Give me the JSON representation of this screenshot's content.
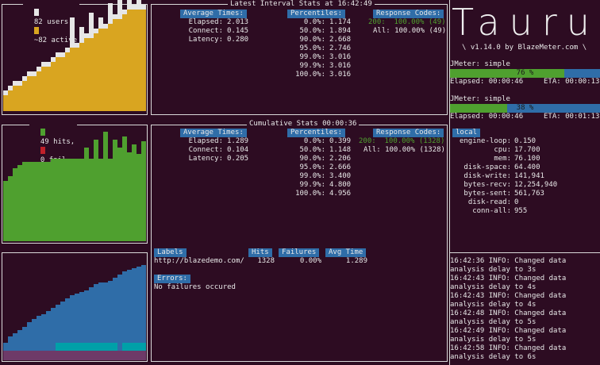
{
  "users_panel": {
    "users_label": "82 users,",
    "active_label": "~82 active",
    "colors": {
      "users": "#e6e6e6",
      "active": "#d9a520"
    }
  },
  "hits_panel": {
    "hits_label": "49 hits,",
    "fail_label": "0 fail",
    "colors": {
      "hits": "#4fa02f",
      "fail": "#c0202a"
    }
  },
  "latency_panel": {
    "colors": {
      "connect": "#6e3a68",
      "latency": "#00a0a8",
      "elapsed": "#2f6da8"
    }
  },
  "interval_stats": {
    "title": "Latest Interval Stats at 16:42:49",
    "avg_times_header": "Average Times:",
    "avg_times": [
      {
        "label": "Elapsed:",
        "value": "2.013"
      },
      {
        "label": "Connect:",
        "value": "0.145"
      },
      {
        "label": "Latency:",
        "value": "0.280"
      }
    ],
    "percentiles_header": "Percentiles:",
    "percentiles": [
      {
        "label": "0.0%:",
        "value": "1.174"
      },
      {
        "label": "50.0%:",
        "value": "1.894"
      },
      {
        "label": "90.0%:",
        "value": "2.668"
      },
      {
        "label": "95.0%:",
        "value": "2.746"
      },
      {
        "label": "99.0%:",
        "value": "3.016"
      },
      {
        "label": "99.9%:",
        "value": "3.016"
      },
      {
        "label": "100.0%:",
        "value": "3.016"
      }
    ],
    "response_codes_header": "Response Codes:",
    "response_codes": [
      {
        "text": "200:  100.00% (49)"
      },
      {
        "text": "All: 100.00% (49)"
      }
    ]
  },
  "cumulative_stats": {
    "title": "Cumulative Stats 00:00:36",
    "avg_times_header": "Average Times:",
    "avg_times": [
      {
        "label": "Elapsed:",
        "value": "1.289"
      },
      {
        "label": "Connect:",
        "value": "0.104"
      },
      {
        "label": "Latency:",
        "value": "0.205"
      }
    ],
    "percentiles_header": "Percentiles:",
    "percentiles": [
      {
        "label": "0.0%:",
        "value": "0.399"
      },
      {
        "label": "50.0%:",
        "value": "1.148"
      },
      {
        "label": "90.0%:",
        "value": "2.206"
      },
      {
        "label": "95.0%:",
        "value": "2.666"
      },
      {
        "label": "99.0%:",
        "value": "3.400"
      },
      {
        "label": "99.9%:",
        "value": "4.800"
      },
      {
        "label": "100.0%:",
        "value": "4.956"
      }
    ],
    "response_codes_header": "Response Codes:",
    "response_codes": [
      {
        "text": "200:  100.00% (1328)"
      },
      {
        "text": "All: 100.00% (1328)"
      }
    ],
    "labels_table": {
      "headers": {
        "labels": "Labels",
        "hits": "Hits",
        "failures": "Failures",
        "avg_time": "Avg Time"
      },
      "rows": [
        {
          "label": "http://blazedemo.com/",
          "hits": "1328",
          "failures": "0.00%",
          "avg_time": "1.289"
        }
      ]
    },
    "errors_header": "Errors:",
    "errors_text": "No failures occured"
  },
  "taurus": {
    "logo": "Taurus",
    "version": "\\ v1.14.0 by BlazeMeter.com \\"
  },
  "executors": [
    {
      "name": "JMeter: simple",
      "progress": 0.76,
      "progress_label": "76 %",
      "elapsed": "Elapsed: 00:00:46",
      "eta": "ETA: 00:00:13"
    },
    {
      "name": "JMeter: simple",
      "progress": 0.38,
      "progress_label": "38 %",
      "elapsed": "Elapsed: 00:00:46",
      "eta": "ETA: 00:01:13"
    }
  ],
  "local": {
    "header": "local",
    "metrics": [
      {
        "label": "engine-loop:",
        "value": "0.150"
      },
      {
        "label": "cpu:",
        "value": "17.700"
      },
      {
        "label": "mem:",
        "value": "76.100"
      },
      {
        "label": "disk-space:",
        "value": "64.400"
      },
      {
        "label": "disk-write:",
        "value": "141,941"
      },
      {
        "label": "bytes-recv:",
        "value": "12,254,940"
      },
      {
        "label": "bytes-sent:",
        "value": "561,763"
      },
      {
        "label": "disk-read:",
        "value": "0"
      },
      {
        "label": "conn-all:",
        "value": "955"
      }
    ]
  },
  "log": {
    "lines": [
      "16:42:36 INFO: Changed data",
      "analysis delay to 3s",
      "16:42:43 INFO: Changed data",
      "analysis delay to 4s",
      "16:42:43 INFO: Changed data",
      "analysis delay to 4s",
      "16:42:48 INFO: Changed data",
      "analysis delay to 5s",
      "16:42:49 INFO: Changed data",
      "analysis delay to 5s",
      "16:42:58 INFO: Changed data",
      "analysis delay to 6s"
    ]
  }
}
